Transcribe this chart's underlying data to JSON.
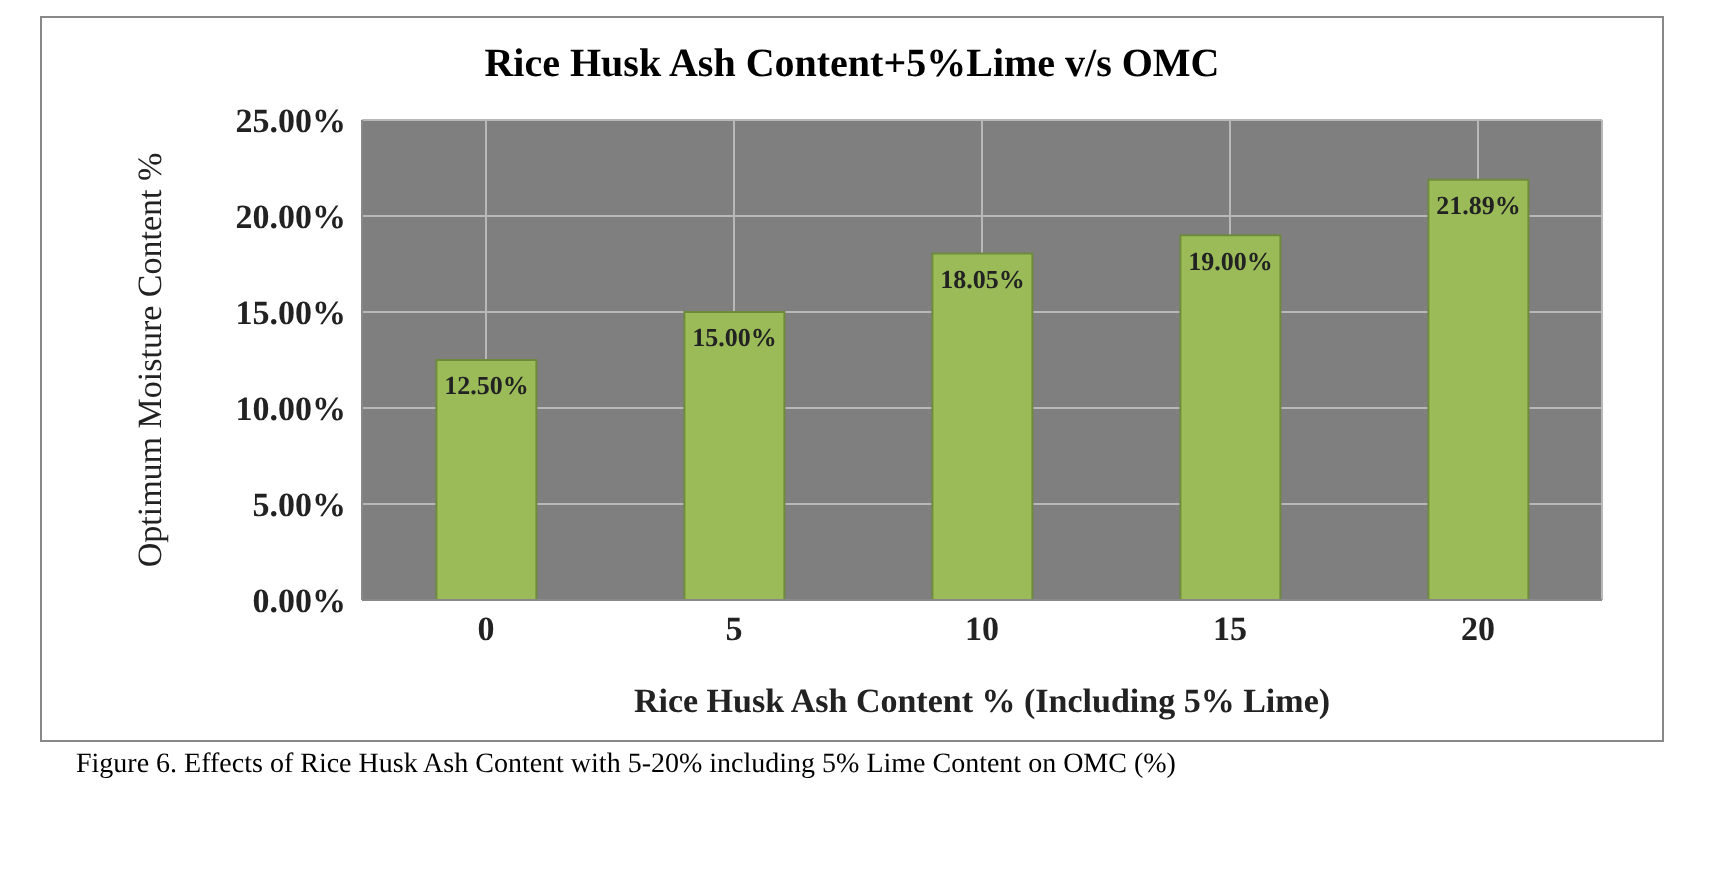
{
  "chart_data": {
    "type": "bar",
    "title": "Rice Husk Ash Content+5%Lime v/s OMC",
    "xlabel": "Rice Husk Ash Content % (Including 5% Lime)",
    "ylabel": "Optimum Moisture Content %",
    "categories": [
      "0",
      "5",
      "10",
      "15",
      "20"
    ],
    "values": [
      12.5,
      15.0,
      18.05,
      19.0,
      21.89
    ],
    "color": "#9bbb59",
    "value_labels": [
      "12.50%",
      "15.00%",
      "18.05%",
      "19.00%",
      "21.89%"
    ],
    "ylim": [
      0,
      25
    ],
    "yticks": [
      {
        "value": 0,
        "label": "0.00%"
      },
      {
        "value": 5,
        "label": "5.00%"
      },
      {
        "value": 10,
        "label": "10.00%"
      },
      {
        "value": 15,
        "label": "15.00%"
      },
      {
        "value": 20,
        "label": "20.00%"
      },
      {
        "value": 25,
        "label": "25.00%"
      }
    ],
    "grid": true,
    "annotations": [
      "Figure 6. Effects of Rice Husk Ash Content with 5-20% including 5% Lime Content on OMC (%)"
    ]
  }
}
